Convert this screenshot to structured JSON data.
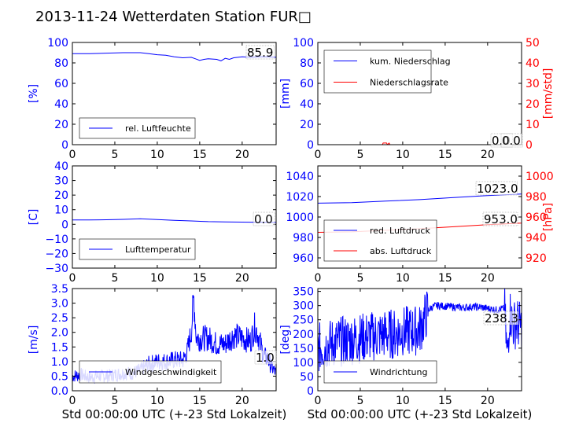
{
  "title": "2013-11-24 Wetterdaten Station FUR□",
  "colors": {
    "primary": "#0000ff",
    "secondary": "#ff0000",
    "text": "#000000"
  },
  "chart_data": [
    {
      "type": "line",
      "ylabel": "[%]",
      "xlim": [
        0,
        24
      ],
      "ylim": [
        0,
        100
      ],
      "xticks": [
        "0",
        "5",
        "10",
        "15",
        "20"
      ],
      "yticks": [
        "0",
        "20",
        "40",
        "60",
        "80",
        "100"
      ],
      "series": [
        {
          "name": "rel. Luftfeuchte",
          "color": "#0000ff",
          "x": [
            0,
            2,
            4,
            6,
            8,
            9,
            10,
            11,
            12,
            13,
            14,
            14.5,
            15,
            15.5,
            16,
            17,
            17.5,
            18,
            18.5,
            19,
            20,
            21,
            22,
            23,
            24
          ],
          "y": [
            89,
            89,
            89.5,
            90,
            90,
            89,
            88,
            87.5,
            86,
            85,
            85.5,
            84,
            82.5,
            83.5,
            84,
            83.5,
            82,
            84.5,
            83.5,
            85,
            86,
            85.5,
            86,
            86,
            85.5
          ]
        }
      ],
      "annotations": [
        "85.9"
      ]
    },
    {
      "type": "line",
      "ylabel": "[mm]",
      "y2label": "[mm/std]",
      "xlim": [
        0,
        24
      ],
      "ylim": [
        0,
        100
      ],
      "y2lim": [
        0,
        50
      ],
      "xticks": [
        "0",
        "5",
        "10",
        "15",
        "20"
      ],
      "yticks": [
        "0",
        "20",
        "40",
        "60",
        "80",
        "100"
      ],
      "y2ticks": [
        "0",
        "10",
        "20",
        "30",
        "40",
        "50"
      ],
      "series": [
        {
          "name": "kum. Niederschlag",
          "color": "#0000ff",
          "axis": "left",
          "x": [
            0,
            24
          ],
          "y": [
            0,
            0
          ]
        },
        {
          "name": "Niederschlagsrate",
          "color": "#ff0000",
          "axis": "right",
          "x": [
            0,
            7.6,
            7.7,
            8.1,
            8.2,
            8.4,
            8.5,
            24
          ],
          "y": [
            0,
            0,
            0.8,
            0.8,
            0,
            0.8,
            0,
            0
          ]
        }
      ],
      "annotations": [
        "0.0",
        "0.0"
      ]
    },
    {
      "type": "line",
      "ylabel": "[C]",
      "xlim": [
        0,
        24
      ],
      "ylim": [
        -30,
        40
      ],
      "xticks": [
        "0",
        "5",
        "10",
        "15",
        "20"
      ],
      "yticks": [
        "−30",
        "−20",
        "−10",
        "0",
        "10",
        "20",
        "30",
        "40"
      ],
      "series": [
        {
          "name": "Lufttemperatur",
          "color": "#0000ff",
          "x": [
            0,
            2,
            4,
            6,
            8,
            10,
            12,
            14,
            16,
            18,
            20,
            22,
            24
          ],
          "y": [
            3,
            3,
            3.1,
            3.4,
            3.8,
            3.3,
            2.7,
            2.3,
            1.8,
            1.6,
            1.5,
            1.4,
            1.3
          ]
        }
      ],
      "annotations": [
        "0.0"
      ]
    },
    {
      "type": "line",
      "ylabel": "",
      "y2label": "[hPa]",
      "xlim": [
        0,
        24
      ],
      "ylim": [
        950,
        1050
      ],
      "y2lim": [
        910,
        1010
      ],
      "xticks": [
        "0",
        "5",
        "10",
        "15",
        "20"
      ],
      "yticks": [
        "960",
        "980",
        "1000",
        "1020",
        "1040"
      ],
      "y2ticks": [
        "920",
        "940",
        "960",
        "980",
        "1000"
      ],
      "series": [
        {
          "name": "red. Luftdruck",
          "color": "#0000ff",
          "axis": "left",
          "x": [
            0,
            4,
            8,
            12,
            16,
            20,
            24
          ],
          "y": [
            1013.5,
            1014,
            1015.5,
            1017,
            1019,
            1021,
            1022.5
          ]
        },
        {
          "name": "abs. Luftdruck",
          "color": "#ff0000",
          "axis": "right",
          "x": [
            0,
            4,
            8,
            12,
            16,
            20,
            24
          ],
          "y": [
            945,
            945.5,
            947,
            948.5,
            950.5,
            952.5,
            954
          ]
        }
      ],
      "annotations": [
        "1023.0",
        "953.0"
      ]
    },
    {
      "type": "line",
      "ylabel": "[m/s]",
      "xlabel": "Std 00:00:00 UTC (+-23 Std Lokalzeit)",
      "xlim": [
        0,
        24
      ],
      "ylim": [
        0,
        3.5
      ],
      "xticks": [
        "0",
        "5",
        "10",
        "15",
        "20"
      ],
      "yticks": [
        "0.0",
        "0.5",
        "1.0",
        "1.5",
        "2.0",
        "2.5",
        "3.0",
        "3.5"
      ],
      "series": [
        {
          "name": "Windgeschwindigkeit",
          "color": "#0000ff",
          "x": [
            0,
            1,
            2,
            3,
            4,
            5,
            6,
            7,
            8,
            9,
            10,
            11,
            12,
            13,
            13.5,
            14,
            14.3,
            14.6,
            15,
            16,
            17,
            18,
            19,
            20,
            21,
            21.5,
            22,
            22.5,
            23,
            23.5,
            24
          ],
          "y": [
            0.5,
            0.55,
            0.45,
            0.5,
            0.5,
            0.55,
            0.6,
            0.6,
            0.7,
            0.9,
            1.0,
            1.0,
            1.05,
            1.05,
            1.3,
            2.0,
            3.2,
            1.8,
            1.8,
            1.8,
            1.6,
            1.6,
            1.9,
            1.8,
            1.7,
            2.2,
            1.8,
            1.2,
            1.1,
            0.8,
            0.6
          ]
        }
      ],
      "annotations": [
        "1.0"
      ]
    },
    {
      "type": "line",
      "ylabel": "[deg]",
      "xlabel": "Std 00:00:00 UTC (+-23 Std Lokalzeit)",
      "xlim": [
        0,
        24
      ],
      "ylim": [
        0,
        360
      ],
      "xticks": [
        "0",
        "5",
        "10",
        "15",
        "20"
      ],
      "yticks": [
        "0",
        "50",
        "100",
        "150",
        "200",
        "250",
        "300",
        "350"
      ],
      "series": [
        {
          "name": "Windrichtung",
          "color": "#0000ff",
          "x": [
            0,
            1,
            2,
            3,
            4,
            5,
            6,
            7,
            8,
            9,
            10,
            11,
            12,
            12.5,
            13,
            13.5,
            14,
            15,
            16,
            17,
            18,
            19,
            20,
            21,
            22,
            22.3,
            22.6,
            23,
            23.5,
            24
          ],
          "y": [
            150,
            160,
            170,
            175,
            180,
            185,
            190,
            195,
            200,
            200,
            210,
            210,
            215,
            250,
            285,
            295,
            300,
            298,
            295,
            293,
            295,
            295,
            290,
            285,
            290,
            110,
            280,
            230,
            240,
            220
          ]
        }
      ],
      "annotations": [
        "238.3"
      ]
    }
  ]
}
